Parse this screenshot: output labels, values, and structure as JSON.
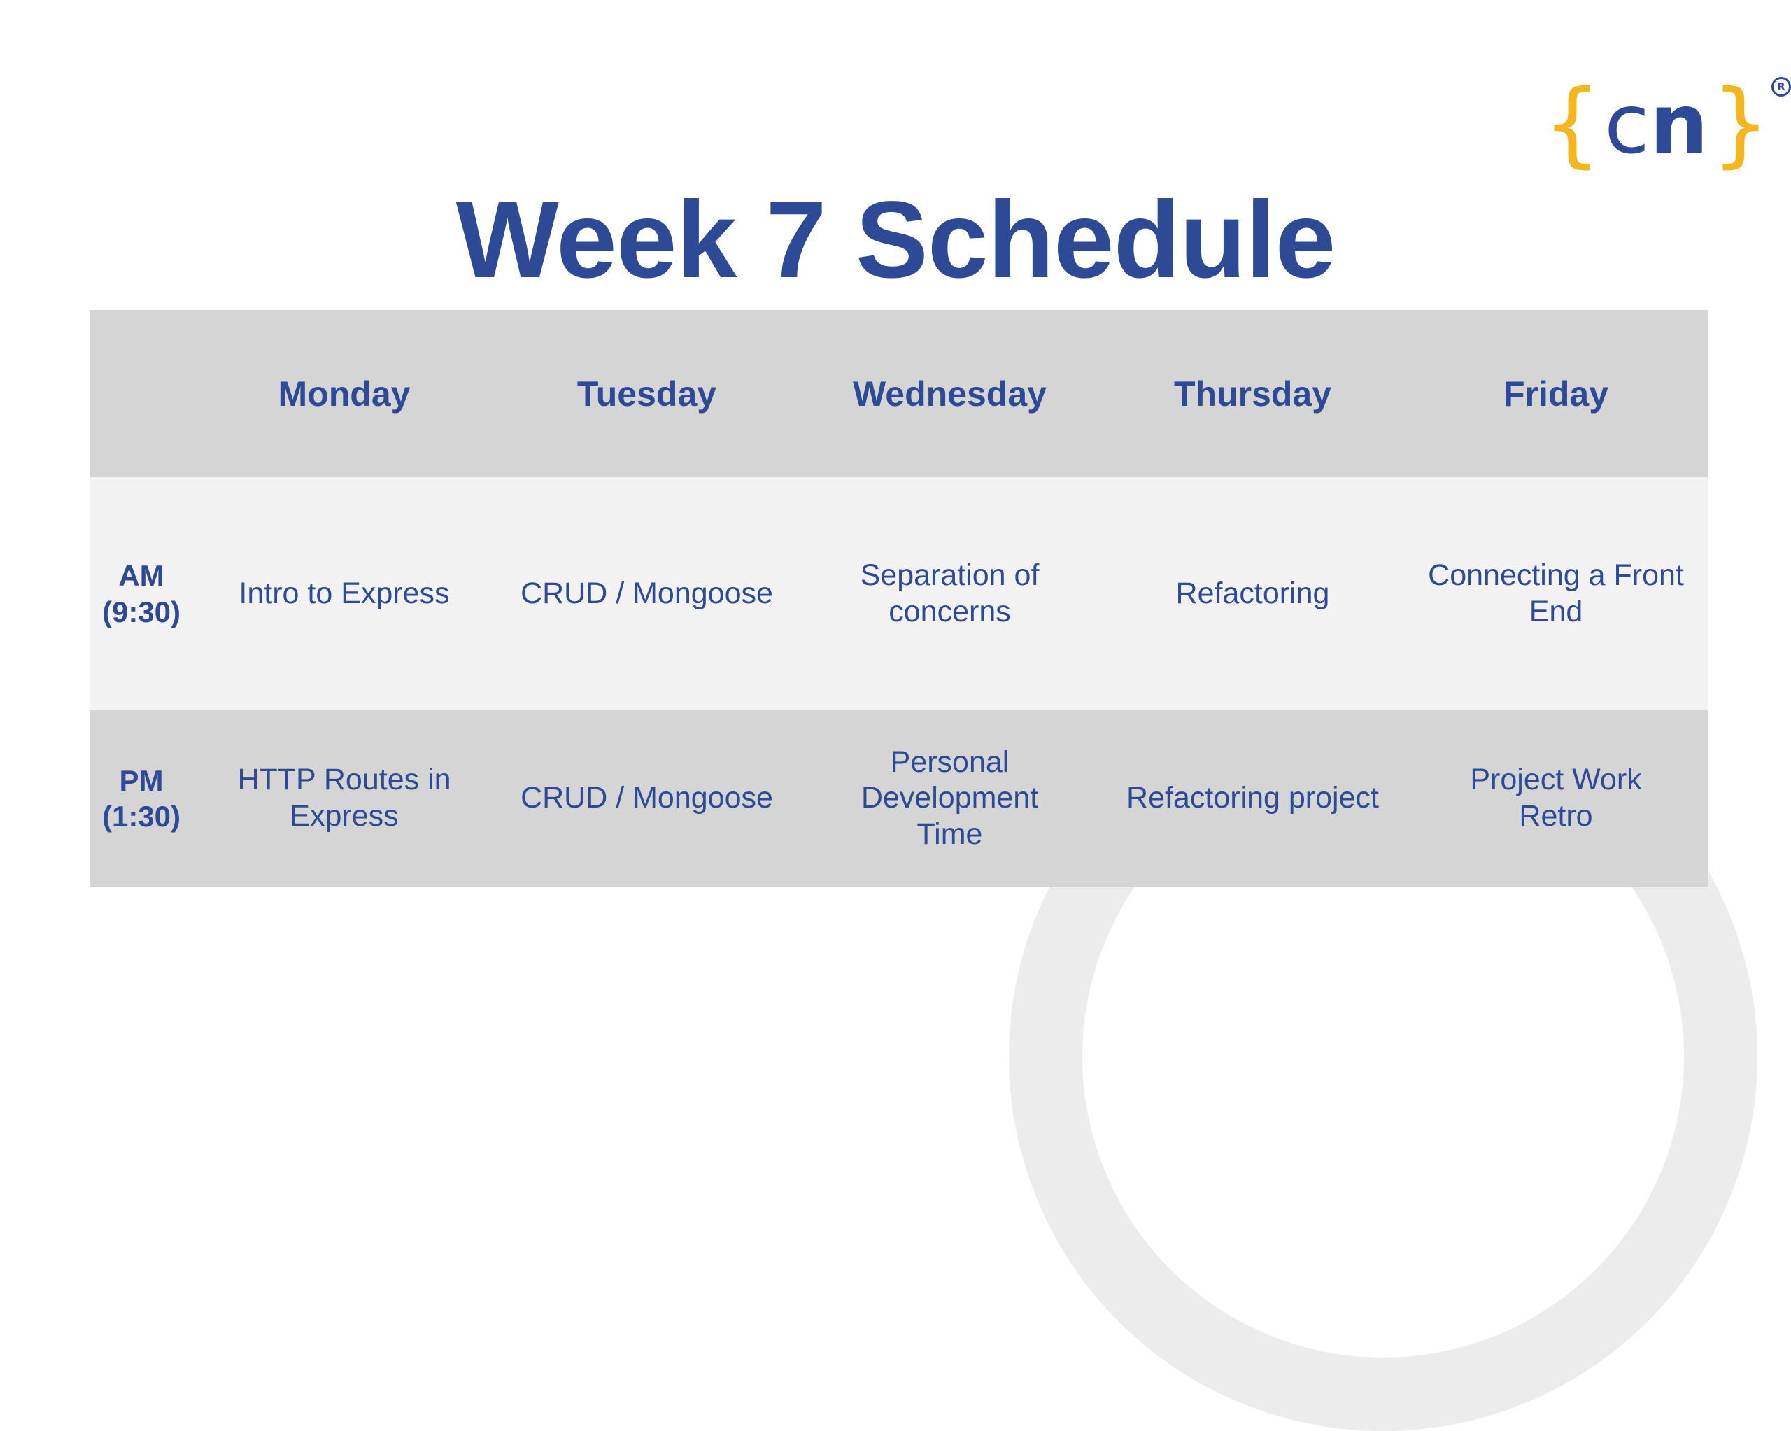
{
  "title": "Week 7 Schedule",
  "logo": {
    "open_brace": "{",
    "c": "c",
    "n": "n",
    "close_brace": "}",
    "registered": "R",
    "brace_color": "#f4b51e",
    "text_color": "#2e4a96"
  },
  "colors": {
    "primary": "#2e4a96",
    "header_row_bg": "#d5d5d5",
    "am_row_bg": "#f2f2f2",
    "pm_row_bg": "#d5d5d5",
    "decorative_ring": "#ececec"
  },
  "table": {
    "days": [
      "Monday",
      "Tuesday",
      "Wednesday",
      "Thursday",
      "Friday"
    ],
    "rows": [
      {
        "time": "AM\n(9:30)",
        "sessions": [
          "Intro to Express",
          "CRUD / Mongoose",
          "Separation of concerns",
          "Refactoring",
          "Connecting a Front End"
        ]
      },
      {
        "time": "PM\n(1:30)",
        "sessions": [
          "HTTP Routes in Express",
          "CRUD / Mongoose",
          "Personal Development Time",
          "Refactoring project",
          "Project Work Retro"
        ]
      }
    ]
  }
}
